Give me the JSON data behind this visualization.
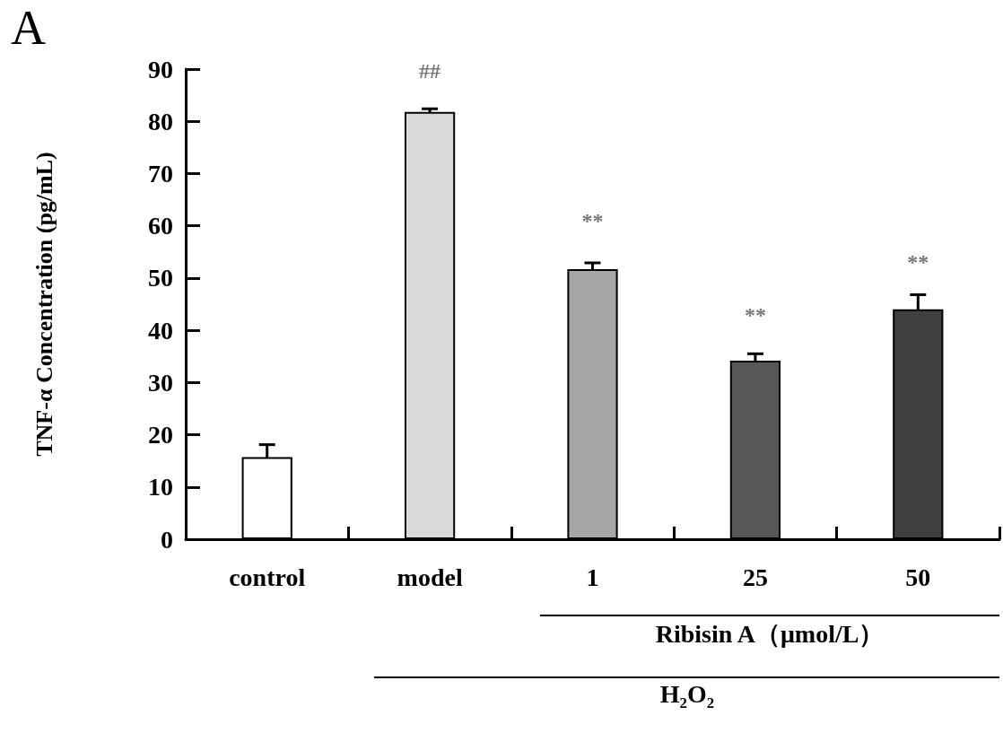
{
  "chart_data": {
    "type": "bar",
    "ylabel": "TNF-α Concentration (pg/mL)",
    "categories": [
      "control",
      "model",
      "1",
      "25",
      "50"
    ],
    "values": [
      15.7,
      81.8,
      51.7,
      34.2,
      44.0
    ],
    "colors": [
      "#ffffff",
      "#d9d9d9",
      "#a6a6a6",
      "#575757",
      "#3f3f3f"
    ],
    "errors": [
      2.4,
      0.6,
      1.2,
      1.3,
      2.8
    ],
    "ylim": [
      0,
      90
    ],
    "yticks": [
      0,
      10,
      20,
      30,
      40,
      50,
      60,
      70,
      80,
      90
    ],
    "grid": false,
    "annotations": [
      "##",
      "**",
      "**",
      "**",
      "A",
      "Ribisin A（μmol/L）",
      "H₂O₂"
    ]
  }
}
